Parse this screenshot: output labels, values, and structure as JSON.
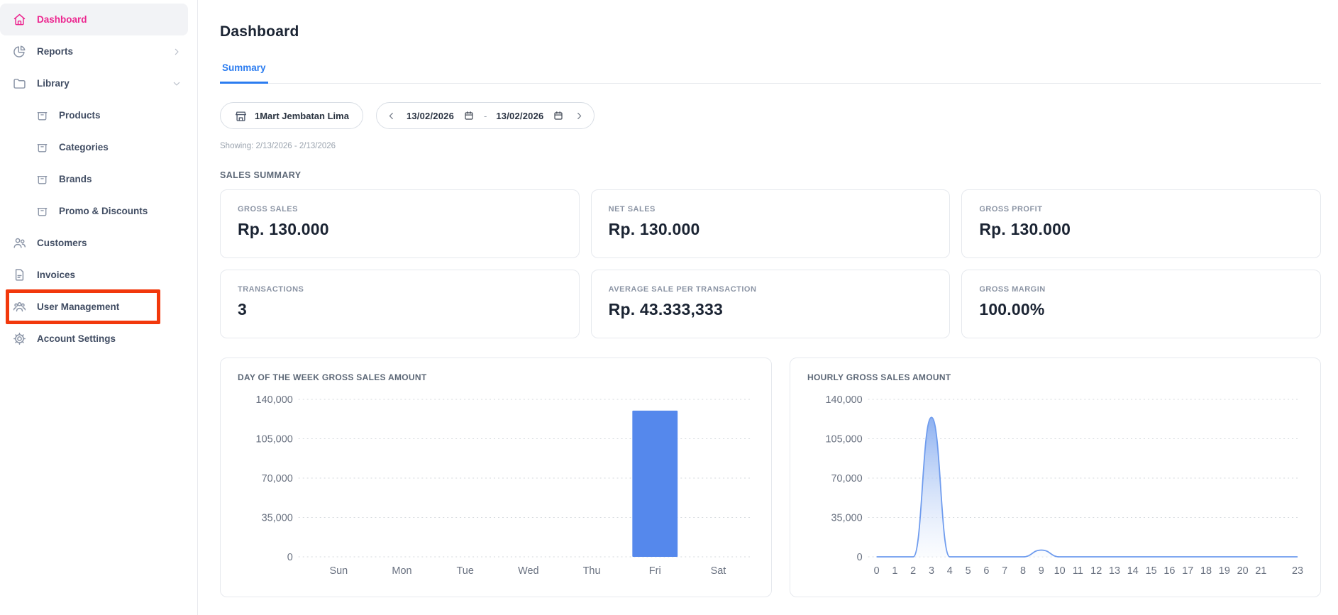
{
  "sidebar": {
    "items": [
      {
        "label": "Dashboard",
        "icon": "home",
        "active": true
      },
      {
        "label": "Reports",
        "icon": "pie",
        "chevron": "right"
      },
      {
        "label": "Library",
        "icon": "folder",
        "chevron": "down"
      },
      {
        "label": "Products",
        "icon": "box",
        "sub": true
      },
      {
        "label": "Categories",
        "icon": "box",
        "sub": true
      },
      {
        "label": "Brands",
        "icon": "box",
        "sub": true
      },
      {
        "label": "Promo & Discounts",
        "icon": "box",
        "sub": true
      },
      {
        "label": "Customers",
        "icon": "users"
      },
      {
        "label": "Invoices",
        "icon": "invoice"
      },
      {
        "label": "User Management",
        "icon": "userGroup",
        "annotated": true
      },
      {
        "label": "Account Settings",
        "icon": "gear"
      }
    ]
  },
  "header": {
    "title": "Dashboard"
  },
  "tabs": [
    {
      "label": "Summary",
      "active": true
    }
  ],
  "filters": {
    "store_button": {
      "label": "1Mart Jembatan Lima",
      "icon": "store-icon"
    },
    "date_range": {
      "start": "13/02/2026",
      "end": "13/02/2026",
      "separator": "-"
    },
    "showing_text": "Showing: 2/13/2026 - 2/13/2026"
  },
  "sales_summary": {
    "heading": "SALES SUMMARY",
    "cards": [
      {
        "label": "GROSS SALES",
        "value": "Rp. 130.000"
      },
      {
        "label": "NET SALES",
        "value": "Rp. 130.000"
      },
      {
        "label": "GROSS PROFIT",
        "value": "Rp. 130.000"
      },
      {
        "label": "TRANSACTIONS",
        "value": "3"
      },
      {
        "label": "AVERAGE SALE PER TRANSACTION",
        "value": "Rp. 43.333,333"
      },
      {
        "label": "GROSS MARGIN",
        "value": "100.00%"
      }
    ]
  },
  "chart_data": [
    {
      "type": "bar",
      "title": "DAY OF THE WEEK GROSS SALES AMOUNT",
      "categories": [
        "Sun",
        "Mon",
        "Tue",
        "Wed",
        "Thu",
        "Fri",
        "Sat"
      ],
      "values": [
        0,
        0,
        0,
        0,
        0,
        130000,
        0
      ],
      "xlabel": "",
      "ylabel": "",
      "ylim": [
        0,
        140000
      ],
      "yticks": [
        0,
        35000,
        70000,
        105000,
        140000
      ],
      "grid": "horizontal-dotted",
      "legend": "none",
      "bar_color": "#5588ec"
    },
    {
      "type": "area",
      "title": "HOURLY GROSS SALES AMOUNT",
      "x": [
        0,
        1,
        2,
        3,
        4,
        5,
        6,
        7,
        8,
        9,
        10,
        11,
        12,
        13,
        14,
        15,
        16,
        17,
        18,
        19,
        20,
        21,
        22,
        23
      ],
      "values": [
        0,
        0,
        0,
        124000,
        0,
        0,
        0,
        0,
        0,
        6000,
        0,
        0,
        0,
        0,
        0,
        0,
        0,
        0,
        0,
        0,
        0,
        0,
        0,
        0
      ],
      "x_tick_labels": [
        "0",
        "1",
        "2",
        "3",
        "4",
        "5",
        "6",
        "7",
        "8",
        "9",
        "10",
        "11",
        "12",
        "13",
        "14",
        "15",
        "16",
        "17",
        "18",
        "19",
        "20",
        "21",
        "",
        "23"
      ],
      "xlabel": "",
      "ylabel": "",
      "ylim": [
        0,
        140000
      ],
      "yticks": [
        0,
        35000,
        70000,
        105000,
        140000
      ],
      "grid": "horizontal-dotted",
      "legend": "none",
      "line_color": "#6f9cee",
      "fill_gradient": [
        "#86acf0",
        "#f6f9fe"
      ]
    }
  ],
  "annotation": {
    "shape": "red-box",
    "target": "User Management",
    "color": "#f2380c"
  },
  "colors": {
    "accent_pink": "#ec268f",
    "tab_blue": "#2b7cf0",
    "bar_blue": "#5588ec",
    "line_blue": "#6f9cee",
    "annotation_red": "#f2380c",
    "text_dark": "#1b2433",
    "text_muted": "#8b94a4",
    "axis_label": "#697180",
    "gridline": "#d6dade",
    "card_border": "#e6e9ee"
  }
}
